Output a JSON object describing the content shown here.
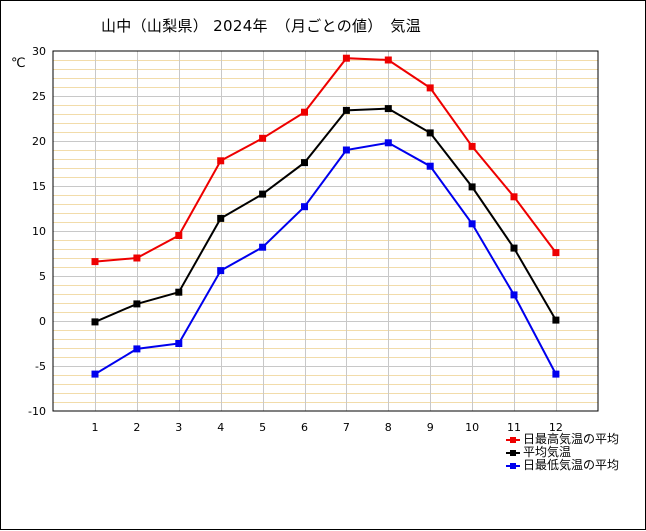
{
  "title": "山中（山梨県） 2024年　（月ごとの値）　気温",
  "chart_data": {
    "type": "line",
    "title": "山中（山梨県） 2024年　（月ごとの値）　気温",
    "ylabel": "℃",
    "xlabel": "",
    "categories": [
      "1",
      "2",
      "3",
      "4",
      "5",
      "6",
      "7",
      "8",
      "9",
      "10",
      "11",
      "12"
    ],
    "ylim": [
      -10,
      30
    ],
    "yticks": [
      -10,
      -5,
      0,
      5,
      10,
      15,
      20,
      25,
      30
    ],
    "grid": true,
    "legend_position": "bottom-right",
    "series": [
      {
        "name": "日最高気温の平均",
        "color": "#ee0000",
        "values": [
          6.6,
          7.0,
          9.5,
          17.8,
          20.3,
          23.2,
          29.2,
          29.0,
          25.9,
          19.4,
          13.8,
          7.6
        ]
      },
      {
        "name": "平均気温",
        "color": "#000000",
        "values": [
          -0.1,
          1.9,
          3.2,
          11.4,
          14.1,
          17.6,
          23.4,
          23.6,
          20.9,
          14.9,
          8.1,
          0.1
        ]
      },
      {
        "name": "日最低気温の平均",
        "color": "#0000ee",
        "values": [
          -5.9,
          -3.1,
          -2.5,
          5.6,
          8.2,
          12.7,
          19.0,
          19.8,
          17.2,
          10.8,
          2.9,
          -5.9
        ]
      }
    ]
  }
}
